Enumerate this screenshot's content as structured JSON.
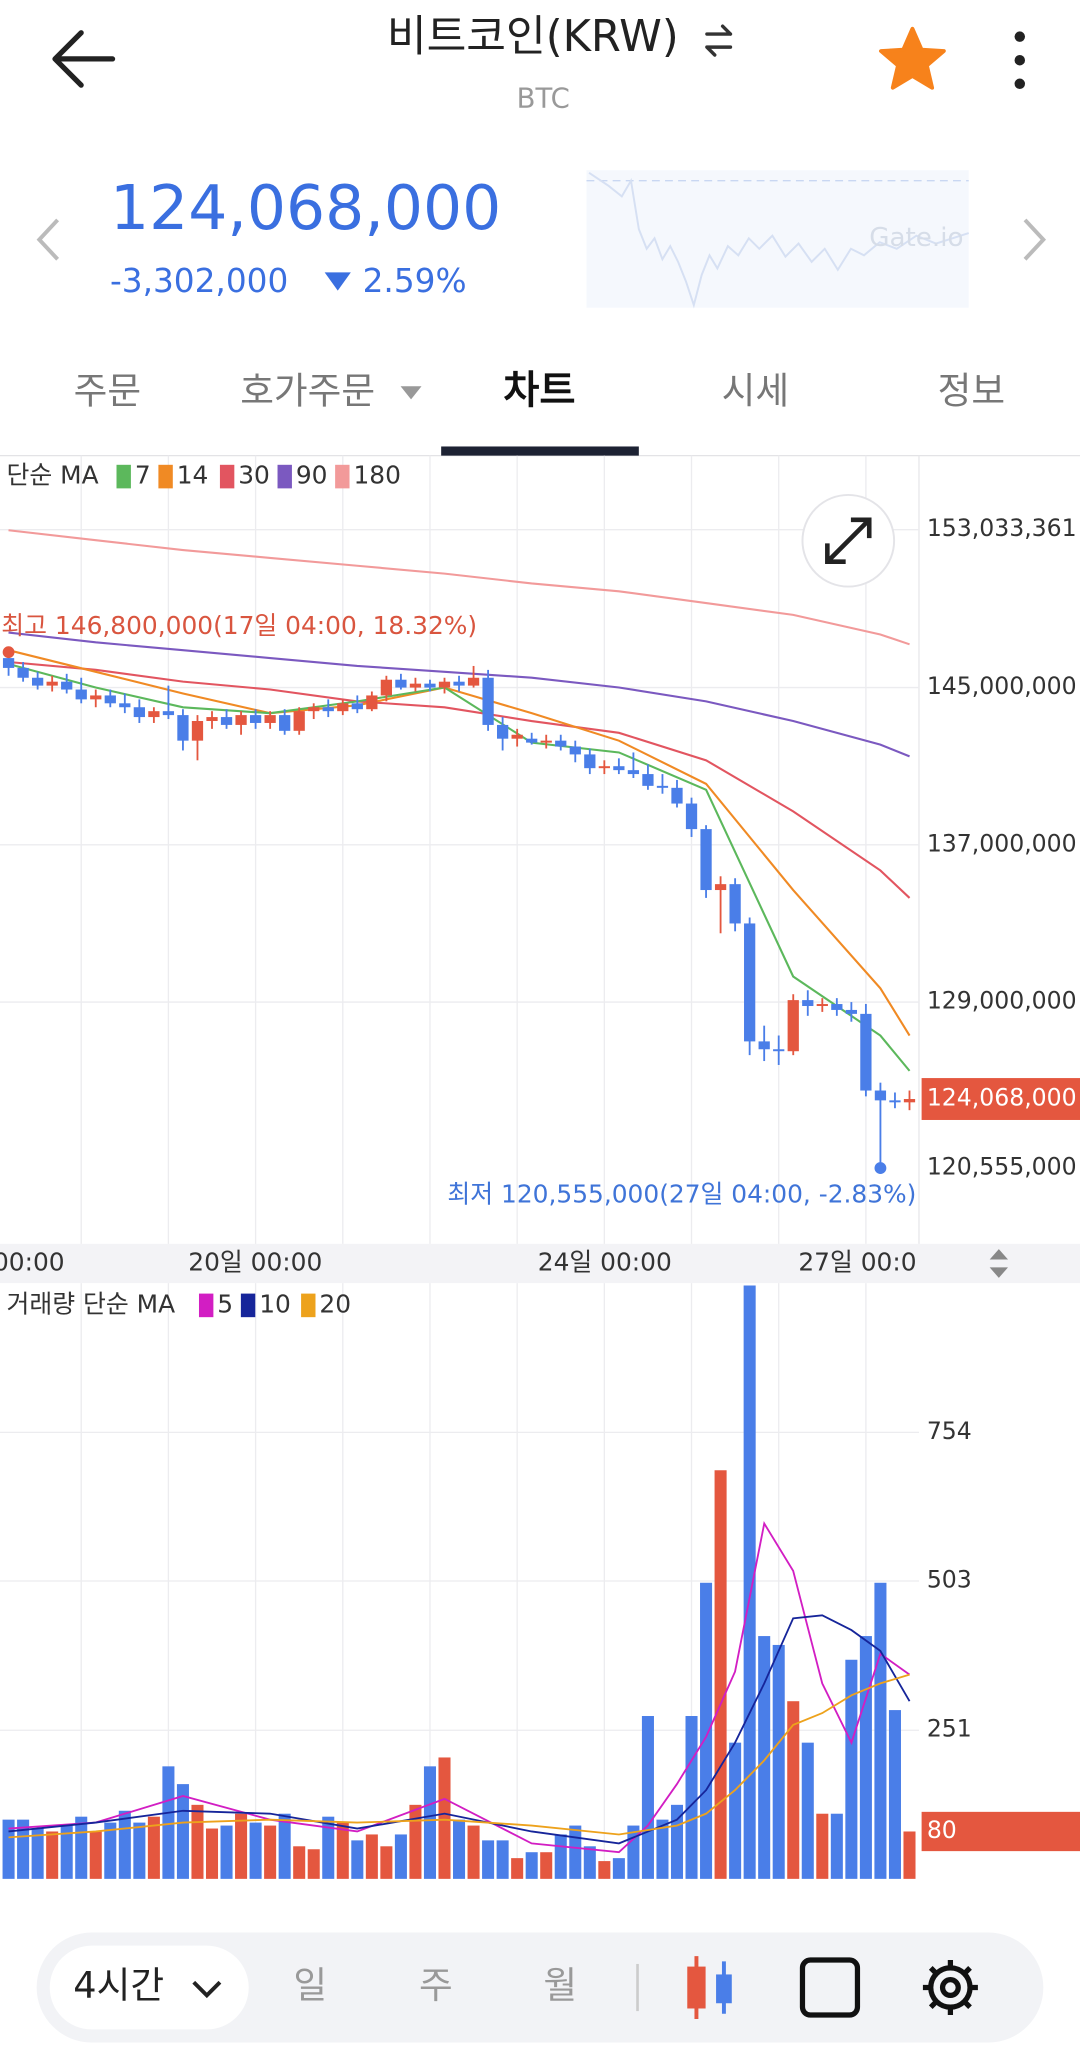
{
  "header": {
    "title": "비트코인(KRW)",
    "subtitle": "BTC"
  },
  "price": {
    "current": "124,068,000",
    "change": "-3,302,000",
    "change_rate": "2.59%",
    "watermark": "Gate.io"
  },
  "tabs": [
    "주문",
    "호가주문",
    "차트",
    "시세",
    "정보"
  ],
  "chart_data": [
    {
      "type": "candlestick",
      "legend_title": "단순 MA",
      "x_labels": [
        "00:00",
        "20일 00:00",
        "24일 00:00",
        "27일 00:0"
      ],
      "up_color": "#e4573f",
      "down_color": "#4a7ee8",
      "open": [
        146500000,
        146000000,
        145500000,
        145100000,
        145300000,
        144900000,
        144400000,
        144600000,
        144200000,
        144000000,
        143500000,
        143800000,
        143600000,
        142300000,
        143300000,
        143500000,
        143100000,
        143600000,
        143200000,
        143600000,
        142800000,
        143800000,
        144000000,
        143800000,
        144200000,
        143900000,
        144600000,
        145400000,
        145000000,
        145200000,
        145000000,
        145300000,
        145100000,
        145500000,
        143100000,
        142400000,
        142400000,
        142200000,
        142300000,
        142000000,
        141600000,
        140900000,
        141000000,
        140800000,
        140600000,
        140000000,
        139900000,
        139100000,
        137800000,
        134700000,
        135000000,
        133000000,
        127000000,
        126600000,
        126500000,
        129100000,
        128800000,
        128900000,
        128600000,
        128400000,
        124500000,
        124000000,
        123900000
      ],
      "high": [
        146800000,
        146300000,
        145800000,
        145600000,
        145700000,
        145500000,
        144900000,
        144900000,
        144700000,
        144400000,
        144000000,
        145100000,
        143900000,
        143600000,
        143800000,
        143900000,
        143800000,
        143900000,
        143800000,
        143900000,
        144000000,
        144200000,
        144400000,
        144400000,
        144600000,
        144800000,
        145600000,
        145700000,
        145500000,
        145400000,
        145500000,
        145600000,
        146100000,
        145900000,
        143500000,
        142900000,
        142700000,
        142600000,
        142600000,
        142300000,
        141900000,
        141300000,
        141400000,
        141700000,
        141100000,
        140600000,
        140300000,
        139400000,
        138000000,
        135400000,
        135300000,
        133300000,
        127800000,
        127300000,
        129400000,
        129600000,
        129200000,
        129200000,
        129000000,
        128900000,
        124900000,
        124400000,
        124500000
      ],
      "low": [
        145600000,
        145300000,
        144900000,
        144800000,
        144700000,
        144200000,
        144000000,
        144000000,
        143700000,
        143200000,
        143200000,
        143400000,
        141800000,
        141300000,
        142900000,
        142900000,
        142600000,
        142900000,
        142900000,
        142600000,
        142600000,
        143400000,
        143500000,
        143600000,
        143700000,
        143800000,
        144300000,
        144900000,
        144800000,
        144800000,
        144700000,
        144800000,
        145000000,
        142800000,
        141800000,
        142000000,
        142100000,
        141900000,
        141800000,
        141200000,
        140600000,
        140600000,
        140600000,
        140400000,
        139800000,
        139600000,
        138900000,
        137400000,
        134300000,
        132500000,
        132600000,
        126300000,
        126000000,
        125800000,
        126300000,
        128300000,
        128500000,
        128300000,
        128000000,
        124200000,
        120555000,
        123600000,
        123500000
      ],
      "close": [
        146000000,
        145500000,
        145100000,
        145300000,
        144900000,
        144400000,
        144600000,
        144200000,
        144000000,
        143500000,
        143800000,
        143600000,
        142300000,
        143300000,
        143500000,
        143100000,
        143600000,
        143200000,
        143600000,
        142800000,
        143800000,
        144000000,
        143800000,
        144200000,
        143900000,
        144600000,
        145400000,
        145000000,
        145200000,
        145000000,
        145300000,
        145100000,
        145500000,
        143100000,
        142400000,
        142600000,
        142200000,
        142300000,
        142000000,
        141600000,
        140900000,
        141000000,
        140800000,
        140600000,
        140000000,
        139900000,
        139100000,
        137800000,
        134700000,
        135000000,
        133000000,
        127000000,
        126600000,
        126500000,
        129100000,
        128800000,
        128900000,
        128600000,
        128400000,
        124500000,
        124000000,
        123900000,
        124068000
      ],
      "series": [
        {
          "name": "7",
          "color": "#5cb85c",
          "x": [
            0,
            6,
            12,
            18,
            24,
            30,
            36,
            42,
            48,
            54,
            60,
            62
          ],
          "values": [
            146200000,
            145000000,
            144000000,
            143700000,
            144300000,
            145000000,
            142200000,
            141700000,
            139800000,
            130300000,
            127300000,
            125500000
          ]
        },
        {
          "name": "14",
          "color": "#f08a24",
          "x": [
            0,
            6,
            12,
            18,
            24,
            30,
            36,
            42,
            48,
            54,
            60,
            62
          ],
          "values": [
            146900000,
            145800000,
            144700000,
            143700000,
            144100000,
            145000000,
            143700000,
            142300000,
            140100000,
            134700000,
            129700000,
            127300000
          ]
        },
        {
          "name": "30",
          "color": "#e25560",
          "x": [
            0,
            6,
            12,
            18,
            24,
            30,
            36,
            42,
            48,
            54,
            60,
            62
          ],
          "values": [
            146300000,
            145900000,
            145300000,
            144900000,
            144300000,
            144000000,
            143300000,
            142700000,
            141300000,
            138700000,
            135700000,
            134300000
          ]
        },
        {
          "name": "90",
          "color": "#7b59c0",
          "x": [
            0,
            6,
            12,
            18,
            24,
            30,
            36,
            42,
            48,
            54,
            60,
            62
          ],
          "values": [
            147800000,
            147300000,
            146900000,
            146500000,
            146100000,
            145800000,
            145500000,
            145000000,
            144300000,
            143300000,
            142100000,
            141500000
          ]
        },
        {
          "name": "180",
          "color": "#f29a9a",
          "x": [
            0,
            6,
            12,
            18,
            24,
            30,
            36,
            42,
            48,
            54,
            60,
            62
          ],
          "values": [
            153000000,
            152500000,
            152000000,
            151600000,
            151200000,
            150800000,
            150300000,
            149900000,
            149300000,
            148700000,
            147700000,
            147200000
          ]
        }
      ],
      "ylim": [
        116700000,
        156800000
      ],
      "yticks": [
        {
          "value": 153033361,
          "label": "153,033,361"
        },
        {
          "value": 145000000,
          "label": "145,000,000"
        },
        {
          "value": 137000000,
          "label": "137,000,000"
        },
        {
          "value": 129000000,
          "label": "129,000,000"
        }
      ],
      "grid": true,
      "price_tag": {
        "value": 124068000,
        "label": "124,068,000"
      },
      "high_marker": {
        "value": 146800000,
        "text": "최고 146,800,000(17일 04:00, 18.32%)"
      },
      "low_marker": {
        "value": 120555000,
        "label": "120,555,000",
        "text": "최저 120,555,000(27일 04:00, -2.83%)"
      }
    },
    {
      "type": "bar",
      "legend_title": "거래량 단순 MA",
      "values": [
        100,
        100,
        85,
        80,
        90,
        105,
        80,
        95,
        115,
        95,
        105,
        190,
        160,
        125,
        85,
        90,
        110,
        95,
        90,
        110,
        55,
        50,
        105,
        95,
        65,
        75,
        55,
        75,
        125,
        190,
        205,
        100,
        90,
        65,
        65,
        35,
        45,
        45,
        75,
        90,
        55,
        30,
        35,
        90,
        275,
        100,
        125,
        275,
        500,
        690,
        230,
        1002,
        410,
        395,
        300,
        230,
        110,
        110,
        370,
        410,
        500,
        285,
        80
      ],
      "series": [
        {
          "name": "5",
          "color": "#d21ec3",
          "x": [
            0,
            6,
            12,
            18,
            24,
            30,
            36,
            42,
            44,
            46,
            48,
            50,
            52,
            54,
            56,
            58,
            60,
            62
          ],
          "values": [
            85,
            95,
            140,
            100,
            80,
            135,
            60,
            45,
            90,
            160,
            240,
            350,
            600,
            520,
            330,
            230,
            380,
            345
          ]
        },
        {
          "name": "10",
          "color": "#16259a",
          "x": [
            0,
            6,
            12,
            18,
            24,
            30,
            36,
            42,
            46,
            48,
            50,
            52,
            54,
            56,
            58,
            60,
            62
          ],
          "values": [
            80,
            95,
            115,
            110,
            85,
            110,
            80,
            60,
            100,
            150,
            230,
            330,
            440,
            445,
            420,
            385,
            300
          ]
        },
        {
          "name": "20",
          "color": "#eda21c",
          "x": [
            0,
            6,
            12,
            18,
            24,
            30,
            36,
            42,
            46,
            48,
            50,
            52,
            54,
            56,
            58,
            60,
            62
          ],
          "values": [
            70,
            80,
            95,
            100,
            95,
            100,
            90,
            75,
            90,
            110,
            150,
            200,
            260,
            280,
            310,
            330,
            345
          ]
        }
      ],
      "ylim": [
        0,
        1006
      ],
      "yticks": [
        251,
        503,
        754
      ],
      "grid": true
    }
  ],
  "bottom_bar": {
    "interval": "4시간",
    "periods": [
      "일",
      "주",
      "월"
    ]
  }
}
